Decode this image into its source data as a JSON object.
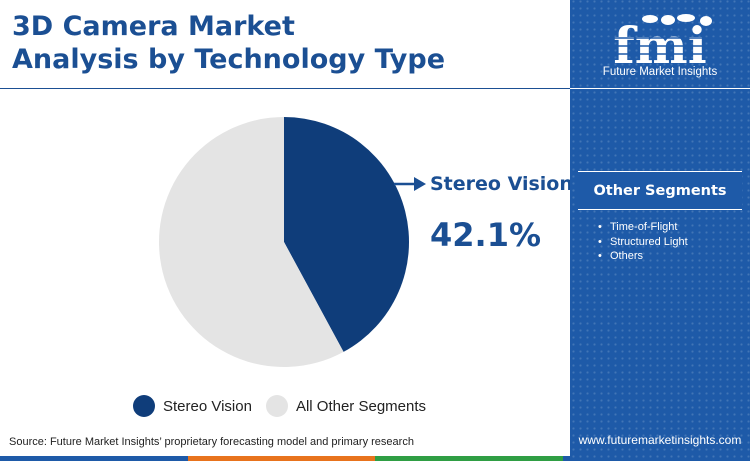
{
  "header": {
    "title_line1": "3D Camera Market",
    "title_line2": "Analysis by Technology Type"
  },
  "chart_data": {
    "type": "pie",
    "title": "3D Camera Market Analysis by Technology Type",
    "slices": [
      {
        "label": "Stereo Vision",
        "value": 42.1,
        "color": "#0f3d7a"
      },
      {
        "label": "All Other Segments",
        "value": 57.9,
        "color": "#e4e4e4"
      }
    ],
    "callout": {
      "label": "Stereo Vision",
      "value_text": "42.1%"
    },
    "legend": [
      "Stereo Vision",
      "All Other Segments"
    ],
    "legend_position": "bottom"
  },
  "source": "Source: Future Market Insights’ proprietary forecasting model and primary research",
  "panel": {
    "logo_text": "fmi",
    "logo_caption": "Future Market Insights",
    "other_segments_title": "Other Segments",
    "other_segments": [
      "Time-of-Flight",
      "Structured Light",
      "Others"
    ],
    "website": "www.futuremarketinsights.com"
  },
  "colors": {
    "brand_blue": "#1e5aa8",
    "dark_blue": "#0f3d7a",
    "title_blue": "#1b4f93",
    "slice_grey": "#e4e4e4",
    "accent_orange": "#e8731d",
    "accent_green": "#2f9e44"
  }
}
